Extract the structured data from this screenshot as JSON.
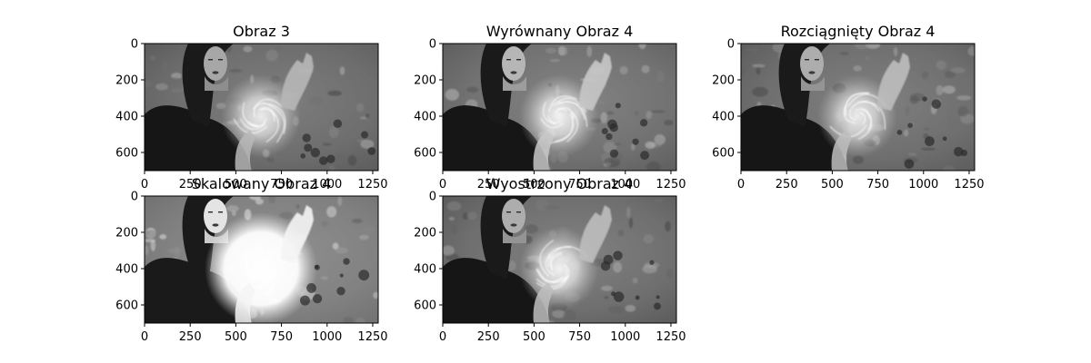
{
  "figure": {
    "background": "#ffffff",
    "frame_color": "#000000"
  },
  "chart_data": [
    {
      "type": "image",
      "title": "Obraz 3",
      "colormap": "gray",
      "variant": "original",
      "xticks": [
        0,
        250,
        500,
        750,
        1000,
        1250
      ],
      "yticks": [
        0,
        200,
        400,
        600
      ],
      "xlim": [
        0,
        1280
      ],
      "ylim": [
        700,
        0
      ]
    },
    {
      "type": "image",
      "title": "Wyrównany Obraz 4",
      "colormap": "gray",
      "variant": "equalized",
      "xticks": [
        0,
        250,
        500,
        750,
        1000,
        1250
      ],
      "yticks": [
        0,
        200,
        400,
        600
      ],
      "xlim": [
        0,
        1280
      ],
      "ylim": [
        700,
        0
      ]
    },
    {
      "type": "image",
      "title": "Rozciągnięty Obraz 4",
      "colormap": "gray",
      "variant": "stretched",
      "xticks": [
        0,
        250,
        500,
        750,
        1000,
        1250
      ],
      "yticks": [
        0,
        200,
        400,
        600
      ],
      "xlim": [
        0,
        1280
      ],
      "ylim": [
        700,
        0
      ]
    },
    {
      "type": "image",
      "title": "Skalowany Obraz 4",
      "colormap": "gray",
      "variant": "scaled",
      "xticks": [
        0,
        250,
        500,
        750,
        1000,
        1250
      ],
      "yticks": [
        0,
        200,
        400,
        600
      ],
      "xlim": [
        0,
        1280
      ],
      "ylim": [
        700,
        0
      ]
    },
    {
      "type": "image",
      "title": "Wyostrzony Obraz 4",
      "colormap": "gray",
      "variant": "sharpened",
      "xticks": [
        0,
        250,
        500,
        750,
        1000,
        1250
      ],
      "yticks": [
        0,
        200,
        400,
        600
      ],
      "xlim": [
        0,
        1280
      ],
      "ylim": [
        700,
        0
      ]
    }
  ]
}
